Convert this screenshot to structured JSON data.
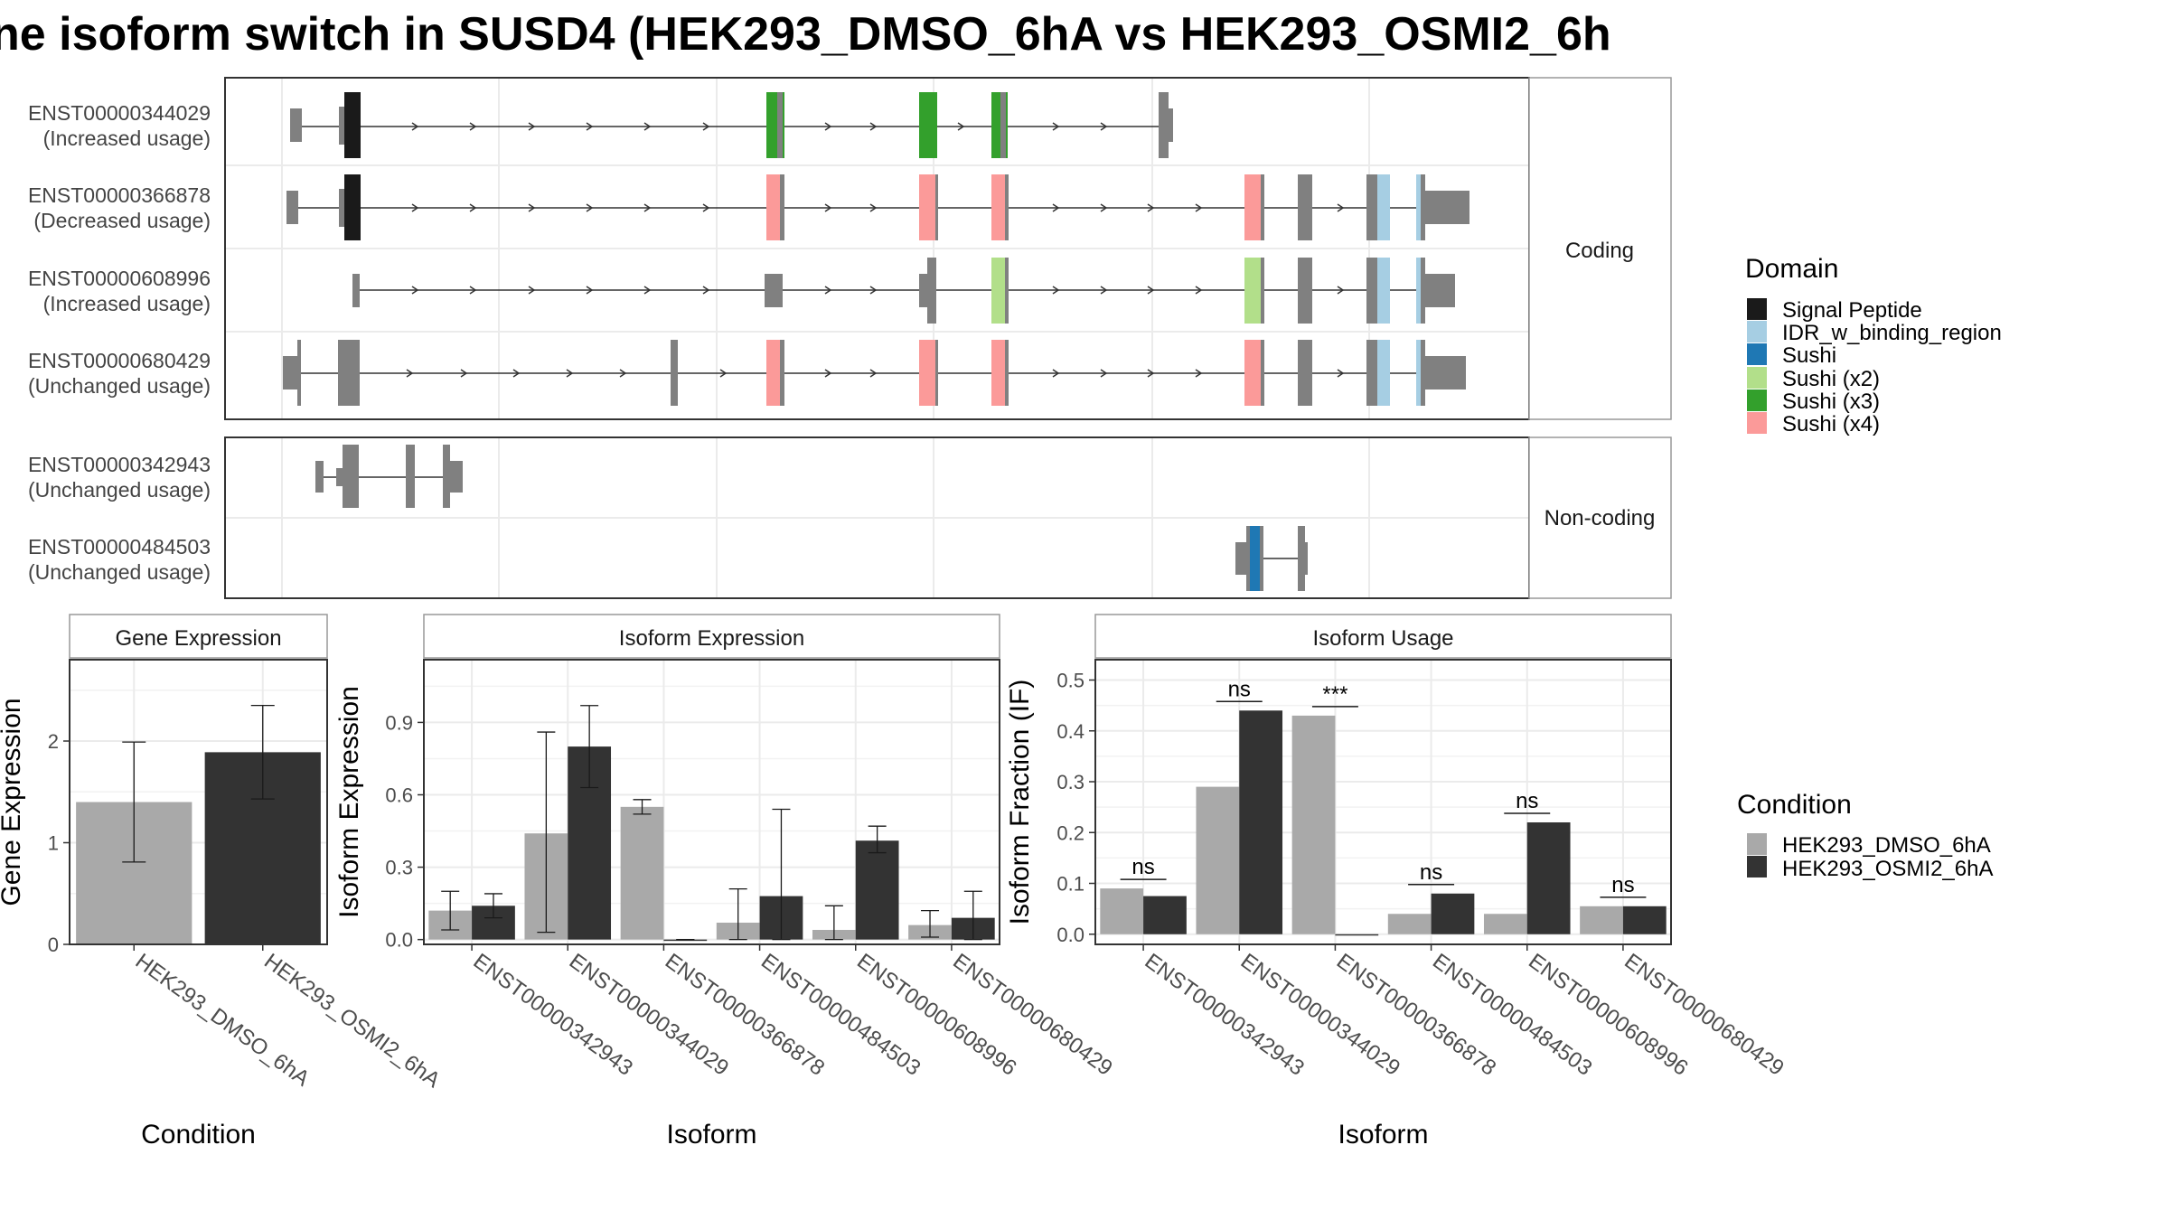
{
  "title": "ne isoform switch in SUSD4 (HEK293_DMSO_6hA vs HEK293_OSMI2_6h",
  "structure": {
    "facets": [
      "Coding",
      "Non-coding"
    ],
    "transcripts": [
      {
        "id": "ENST00000344029",
        "usage": "(Increased usage)",
        "facet": 0
      },
      {
        "id": "ENST00000366878",
        "usage": "(Decreased usage)",
        "facet": 0
      },
      {
        "id": "ENST00000608996",
        "usage": "(Increased usage)",
        "facet": 0
      },
      {
        "id": "ENST00000680429",
        "usage": "(Unchanged usage)",
        "facet": 0
      },
      {
        "id": "ENST00000342943",
        "usage": "(Unchanged usage)",
        "facet": 1
      },
      {
        "id": "ENST00000484503",
        "usage": "(Unchanged usage)",
        "facet": 1
      }
    ]
  },
  "domain_legend": {
    "title": "Domain",
    "items": [
      {
        "label": "Signal Peptide",
        "color": "#1a1a1a"
      },
      {
        "label": "IDR_w_binding_region",
        "color": "#a6cee3"
      },
      {
        "label": "Sushi",
        "color": "#1f78b4"
      },
      {
        "label": "Sushi (x2)",
        "color": "#b2df8a"
      },
      {
        "label": "Sushi (x3)",
        "color": "#33a02c"
      },
      {
        "label": "Sushi (x4)",
        "color": "#fb9a99"
      }
    ]
  },
  "condition_legend": {
    "title": "Condition",
    "items": [
      {
        "label": "HEK293_DMSO_6hA",
        "color": "#a9a9a9"
      },
      {
        "label": "HEK293_OSMI2_6hA",
        "color": "#333333"
      }
    ]
  },
  "chart_data": [
    {
      "type": "bar",
      "title": "Gene Expression",
      "xlabel": "Condition",
      "ylabel": "Gene Expression",
      "ylim": [
        0,
        2.8
      ],
      "yticks": [
        0,
        1,
        2
      ],
      "categories": [
        "HEK293_DMSO_6hA",
        "HEK293_OSMI2_6hA"
      ],
      "values": [
        1.4,
        1.89
      ],
      "error_low": [
        0.81,
        1.43
      ],
      "error_high": [
        1.99,
        2.35
      ]
    },
    {
      "type": "bar",
      "title": "Isoform Expression",
      "xlabel": "Isoform",
      "ylabel": "Isoform Expression",
      "ylim": [
        -0.02,
        1.16
      ],
      "yticks": [
        "0.0",
        "0.3",
        "0.6",
        "0.9"
      ],
      "categories": [
        "ENST00000342943",
        "ENST00000344029",
        "ENST00000366878",
        "ENST00000484503",
        "ENST00000608996",
        "ENST00000680429"
      ],
      "series": [
        {
          "name": "HEK293_DMSO_6hA",
          "values": [
            0.12,
            0.44,
            0.55,
            0.07,
            0.04,
            0.06
          ],
          "error_low": [
            0.04,
            0.03,
            0.52,
            0.0,
            0.0,
            0.01
          ],
          "error_high": [
            0.2,
            0.86,
            0.58,
            0.21,
            0.14,
            0.12
          ]
        },
        {
          "name": "HEK293_OSMI2_6hA",
          "values": [
            0.14,
            0.8,
            0.0,
            0.18,
            0.41,
            0.09
          ],
          "error_low": [
            0.09,
            0.63,
            0.0,
            0.0,
            0.36,
            0.0
          ],
          "error_high": [
            0.19,
            0.97,
            0.0,
            0.54,
            0.47,
            0.2
          ]
        }
      ]
    },
    {
      "type": "bar",
      "title": "Isoform Usage",
      "xlabel": "Isoform",
      "ylabel": "Isoform Fraction (IF)",
      "ylim": [
        -0.02,
        0.54
      ],
      "yticks": [
        "0.0",
        "0.1",
        "0.2",
        "0.3",
        "0.4",
        "0.5"
      ],
      "categories": [
        "ENST00000342943",
        "ENST00000344029",
        "ENST00000366878",
        "ENST00000484503",
        "ENST00000608996",
        "ENST00000680429"
      ],
      "series": [
        {
          "name": "HEK293_DMSO_6hA",
          "values": [
            0.09,
            0.29,
            0.43,
            0.04,
            0.04,
            0.055
          ]
        },
        {
          "name": "HEK293_OSMI2_6hA",
          "values": [
            0.075,
            0.44,
            0.0,
            0.08,
            0.22,
            0.055
          ]
        }
      ],
      "significance": [
        "ns",
        "ns",
        "***",
        "ns",
        "ns",
        "ns"
      ]
    }
  ]
}
